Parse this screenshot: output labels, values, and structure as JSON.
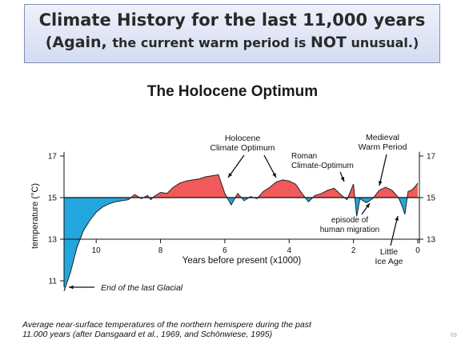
{
  "banner": {
    "line1": "Climate History for the last 11,000 years",
    "line2_open": "(Again, ",
    "line2_rest": "the current warm period is ",
    "line2_not": "NOT",
    "line2_end": " unusual.)"
  },
  "page_number": "69",
  "caption": {
    "line1": "Average near-surface temperatures of the northern hemispere during the past",
    "line2": "11.000 years (after Dansgaard et al., 1969, and Schönwiese, 1995)"
  },
  "colors": {
    "warm": "#f05a5a",
    "cold": "#23a6dd",
    "line": "#222222"
  },
  "chart_data": {
    "type": "area",
    "title": "The Holocene Optimum",
    "xlabel": "Years before present (x1000)",
    "ylabel": "temperature (°C)",
    "xlim": [
      11,
      0
    ],
    "ylim": [
      10.5,
      17.2
    ],
    "baseline": 15,
    "x_ticks": [
      10,
      8,
      6,
      4,
      2,
      0
    ],
    "y_ticks": [
      11,
      13,
      15,
      17
    ],
    "right_y_ticks": [
      13,
      15,
      17
    ],
    "x": [
      11.0,
      10.8,
      10.6,
      10.4,
      10.2,
      10.0,
      9.8,
      9.6,
      9.4,
      9.2,
      9.0,
      8.8,
      8.6,
      8.4,
      8.3,
      8.2,
      8.0,
      7.8,
      7.6,
      7.4,
      7.2,
      7.0,
      6.8,
      6.6,
      6.4,
      6.2,
      6.0,
      5.8,
      5.6,
      5.4,
      5.2,
      5.0,
      4.8,
      4.6,
      4.4,
      4.2,
      4.0,
      3.8,
      3.6,
      3.4,
      3.2,
      3.0,
      2.8,
      2.6,
      2.4,
      2.2,
      2.0,
      1.9,
      1.8,
      1.6,
      1.4,
      1.2,
      1.0,
      0.8,
      0.6,
      0.5,
      0.4,
      0.3,
      0.2,
      0.1,
      0.0
    ],
    "y": [
      10.5,
      11.4,
      12.6,
      13.4,
      13.9,
      14.3,
      14.55,
      14.7,
      14.8,
      14.85,
      14.9,
      15.15,
      14.95,
      15.1,
      14.9,
      15.05,
      15.25,
      15.2,
      15.5,
      15.7,
      15.8,
      15.85,
      15.9,
      16.0,
      16.05,
      16.1,
      15.2,
      14.65,
      15.2,
      14.85,
      15.05,
      14.95,
      15.3,
      15.5,
      15.75,
      15.85,
      15.8,
      15.65,
      15.2,
      14.8,
      15.1,
      15.2,
      15.35,
      15.45,
      15.15,
      14.9,
      15.65,
      14.1,
      14.95,
      14.75,
      14.95,
      15.35,
      15.5,
      15.35,
      15.0,
      14.65,
      14.2,
      15.3,
      15.35,
      15.5,
      15.7
    ],
    "annotations": [
      {
        "lines": [
          "Holocene",
          "Climate Optimum"
        ]
      },
      {
        "lines": [
          "Roman",
          "Climate-Optimum"
        ]
      },
      {
        "lines": [
          "Medieval",
          "Warm Period"
        ]
      },
      {
        "lines": [
          "episode of",
          "human migration"
        ]
      },
      {
        "lines": [
          "Little",
          "Ice Age"
        ]
      },
      {
        "lines": [
          "End of the last Glacial"
        ]
      }
    ]
  }
}
